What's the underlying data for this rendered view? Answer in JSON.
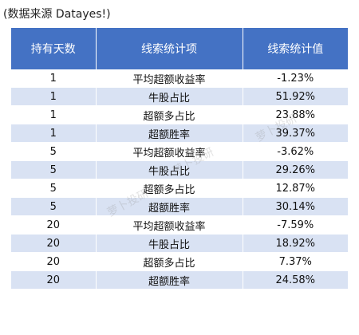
{
  "source_note": "(数据来源 Datayes!)",
  "colors": {
    "header_bg": "#4472C4",
    "row_even_bg": "#FFFFFF",
    "row_odd_bg": "#D9E2F3"
  },
  "table": {
    "headers": [
      "持有天数",
      "线索统计项",
      "线索统计值"
    ],
    "rows": [
      [
        "1",
        "平均超额收益率",
        "-1.23%"
      ],
      [
        "1",
        "牛股占比",
        "51.92%"
      ],
      [
        "1",
        "超额多占比",
        "23.88%"
      ],
      [
        "1",
        "超额胜率",
        "39.37%"
      ],
      [
        "5",
        "平均超额收益率",
        "-3.62%"
      ],
      [
        "5",
        "牛股占比",
        "29.26%"
      ],
      [
        "5",
        "超额多占比",
        "12.87%"
      ],
      [
        "5",
        "超额胜率",
        "30.14%"
      ],
      [
        "20",
        "平均超额收益率",
        "-7.59%"
      ],
      [
        "20",
        "牛股占比",
        "18.92%"
      ],
      [
        "20",
        "超额多占比",
        "7.37%"
      ],
      [
        "20",
        "超额胜率",
        "24.58%"
      ]
    ]
  },
  "watermarks": [
    "萝卜投研",
    "萝卜投研",
    "萝卜投研"
  ]
}
